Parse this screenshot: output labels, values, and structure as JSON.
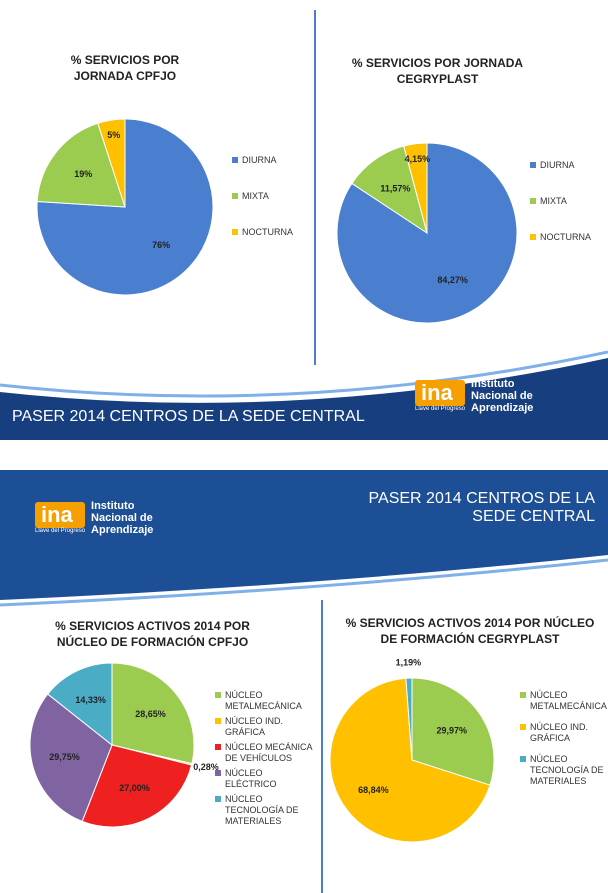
{
  "banner": "PASER 2014 CENTROS DE LA SEDE CENTRAL",
  "logo": {
    "brand": "ina",
    "tagline": "Llave del Progreso",
    "name": [
      "Instituto",
      "Nacional de",
      "Aprendizaje"
    ]
  },
  "chart_data": [
    {
      "type": "pie",
      "title": "% SERVICIOS POR JORNADA CPFJO",
      "categories": [
        "DIURNA",
        "MIXTA",
        "NOCTURNA"
      ],
      "values": [
        76,
        19,
        5
      ],
      "value_labels": [
        "76%",
        "19%",
        "5%"
      ],
      "colors": [
        "#4a7fd0",
        "#9bcb4f",
        "#ffc000"
      ]
    },
    {
      "type": "pie",
      "title": "% SERVICIOS POR JORNADA CEGRYPLAST",
      "categories": [
        "DIURNA",
        "MIXTA",
        "NOCTURNA"
      ],
      "values": [
        84.27,
        11.57,
        4.15
      ],
      "value_labels": [
        "84,27%",
        "11,57%",
        "4,15%"
      ],
      "colors": [
        "#4a7fd0",
        "#9bcb4f",
        "#ffc000"
      ]
    },
    {
      "type": "pie",
      "title": "% SERVICIOS ACTIVOS 2014 POR NÚCLEO DE FORMACIÓN CPFJO",
      "categories": [
        "NÚCLEO METALMECÁNICA",
        "NÚCLEO IND. GRÁFICA",
        "NÚCLEO MECÁNICA DE VEHÍCULOS",
        "NÚCLEO ELÉCTRICO",
        "NÚCLEO TECNOLOGÍA DE MATERIALES"
      ],
      "values": [
        28.65,
        0.28,
        27.0,
        29.75,
        14.33
      ],
      "value_labels": [
        "28,65%",
        "0,28%",
        "27,00%",
        "29,75%",
        "14,33%"
      ],
      "colors": [
        "#9bcb4f",
        "#ffc000",
        "#ee2020",
        "#8064a2",
        "#4bacc6"
      ]
    },
    {
      "type": "pie",
      "title": "% SERVICIOS ACTIVOS 2014 POR NÚCLEO DE FORMACIÓN CEGRYPLAST",
      "categories": [
        "NÚCLEO METALMECÁNICA",
        "NÚCLEO IND. GRÁFICA",
        "NÚCLEO TECNOLOGÍA DE MATERIALES"
      ],
      "values": [
        29.97,
        68.84,
        1.19
      ],
      "value_labels": [
        "29,97%",
        "68,84%",
        "1,19%"
      ],
      "colors": [
        "#9bcb4f",
        "#ffc000",
        "#4bacc6"
      ]
    }
  ]
}
